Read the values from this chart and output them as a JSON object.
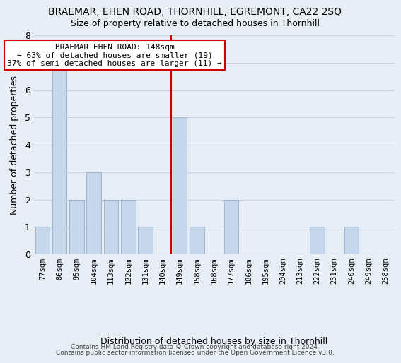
{
  "title": "BRAEMAR, EHEN ROAD, THORNHILL, EGREMONT, CA22 2SQ",
  "subtitle": "Size of property relative to detached houses in Thornhill",
  "xlabel": "Distribution of detached houses by size in Thornhill",
  "ylabel": "Number of detached properties",
  "footnote1": "Contains HM Land Registry data © Crown copyright and database right 2024.",
  "footnote2": "Contains public sector information licensed under the Open Government Licence v3.0.",
  "bin_labels": [
    "77sqm",
    "86sqm",
    "95sqm",
    "104sqm",
    "113sqm",
    "122sqm",
    "131sqm",
    "140sqm",
    "149sqm",
    "158sqm",
    "168sqm",
    "177sqm",
    "186sqm",
    "195sqm",
    "204sqm",
    "213sqm",
    "222sqm",
    "231sqm",
    "240sqm",
    "249sqm",
    "258sqm"
  ],
  "bar_heights": [
    1,
    7,
    2,
    3,
    2,
    2,
    1,
    0,
    5,
    1,
    0,
    2,
    0,
    0,
    0,
    0,
    1,
    0,
    1,
    0,
    0
  ],
  "bar_color": "#c8d8ec",
  "bar_edge_color": "#a0b8d0",
  "vline_color": "#cc0000",
  "vline_x": 8,
  "annotation_title": "BRAEMAR EHEN ROAD: 148sqm",
  "annotation_line1": "← 63% of detached houses are smaller (19)",
  "annotation_line2": "37% of semi-detached houses are larger (11) →",
  "annotation_box_color": "#ffffff",
  "annotation_box_edge": "#cc0000",
  "ylim": [
    0,
    8
  ],
  "yticks": [
    0,
    1,
    2,
    3,
    4,
    5,
    6,
    7,
    8
  ],
  "grid_color": "#c8d4e4",
  "bg_color": "#e8eef6"
}
